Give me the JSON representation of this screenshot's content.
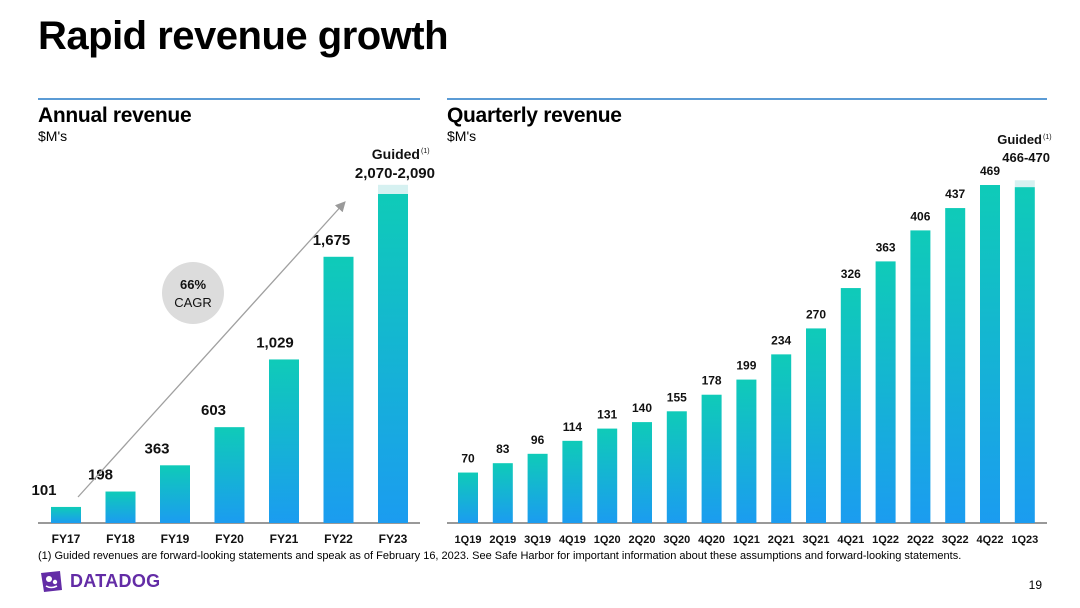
{
  "title": "Rapid revenue growth",
  "footnote": "(1) Guided revenues are forward-looking statements and speak as of February 16, 2023.  See Safe Harbor for important information about these assumptions and forward-looking statements.",
  "logo_text": "DATADOG",
  "page_number": "19",
  "colors": {
    "bar_top": "#0fcbb8",
    "bar_bottom": "#1b9cf0",
    "rule": "#5b9bd5",
    "logo": "#632ca6",
    "guided_band": "#d6f1f1"
  },
  "chart_data": [
    {
      "type": "bar",
      "title": "Annual revenue",
      "ylabel": "$M's",
      "categories": [
        "FY17",
        "FY18",
        "FY19",
        "FY20",
        "FY21",
        "FY22",
        "FY23"
      ],
      "values": [
        101,
        198,
        363,
        603,
        1029,
        1675,
        2070
      ],
      "data_labels": [
        "101",
        "198",
        "363",
        "603",
        "1,029",
        "1,675",
        "2,070-2,090"
      ],
      "guided": {
        "label": "Guided",
        "superscript": "(1)",
        "range": [
          2070,
          2090
        ]
      },
      "annotation": {
        "value": "66%",
        "label": "CAGR"
      },
      "ylim": [
        0,
        2100
      ]
    },
    {
      "type": "bar",
      "title": "Quarterly revenue",
      "ylabel": "$M's",
      "categories": [
        "1Q19",
        "2Q19",
        "3Q19",
        "4Q19",
        "1Q20",
        "2Q20",
        "3Q20",
        "4Q20",
        "1Q21",
        "2Q21",
        "3Q21",
        "4Q21",
        "1Q22",
        "2Q22",
        "3Q22",
        "4Q22",
        "1Q23"
      ],
      "values": [
        70,
        83,
        96,
        114,
        131,
        140,
        155,
        178,
        199,
        234,
        270,
        326,
        363,
        406,
        437,
        469,
        466
      ],
      "data_labels": [
        "70",
        "83",
        "96",
        "114",
        "131",
        "140",
        "155",
        "178",
        "199",
        "234",
        "270",
        "326",
        "363",
        "406",
        "437",
        "469",
        "466-470"
      ],
      "guided": {
        "label": "Guided",
        "superscript": "(1)",
        "range": [
          466,
          470
        ]
      },
      "ylim": [
        0,
        470
      ]
    }
  ]
}
